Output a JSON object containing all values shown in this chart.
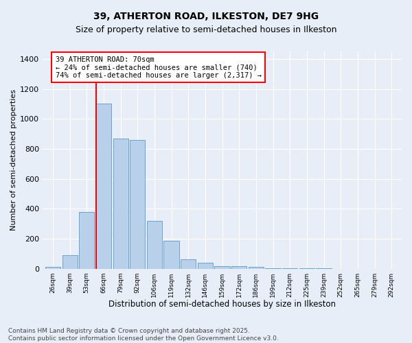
{
  "title1": "39, ATHERTON ROAD, ILKESTON, DE7 9HG",
  "title2": "Size of property relative to semi-detached houses in Ilkeston",
  "xlabel": "Distribution of semi-detached houses by size in Ilkeston",
  "ylabel": "Number of semi-detached properties",
  "bar_labels": [
    "26sqm",
    "39sqm",
    "53sqm",
    "66sqm",
    "79sqm",
    "92sqm",
    "106sqm",
    "119sqm",
    "132sqm",
    "146sqm",
    "159sqm",
    "172sqm",
    "186sqm",
    "199sqm",
    "212sqm",
    "225sqm",
    "239sqm",
    "252sqm",
    "265sqm",
    "279sqm",
    "292sqm"
  ],
  "bar_values": [
    10,
    90,
    380,
    1100,
    870,
    860,
    320,
    185,
    60,
    40,
    15,
    15,
    10,
    5,
    3,
    1,
    1,
    0,
    0,
    0,
    0
  ],
  "bar_color": "#b8d0ea",
  "bar_edge_color": "#6ba3cb",
  "background_color": "#e8eef8",
  "grid_color": "#ffffff",
  "vline_color": "red",
  "vline_pos": 3.0,
  "annotation_text": "39 ATHERTON ROAD: 70sqm\n← 24% of semi-detached houses are smaller (740)\n74% of semi-detached houses are larger (2,317) →",
  "annotation_box_color": "white",
  "annotation_border_color": "red",
  "ylim": [
    0,
    1450
  ],
  "yticks": [
    0,
    200,
    400,
    600,
    800,
    1000,
    1200,
    1400
  ],
  "footnote": "Contains HM Land Registry data © Crown copyright and database right 2025.\nContains public sector information licensed under the Open Government Licence v3.0.",
  "title1_fontsize": 10,
  "title2_fontsize": 9,
  "xlabel_fontsize": 8.5,
  "ylabel_fontsize": 8,
  "annotation_fontsize": 7.5,
  "footnote_fontsize": 6.5
}
